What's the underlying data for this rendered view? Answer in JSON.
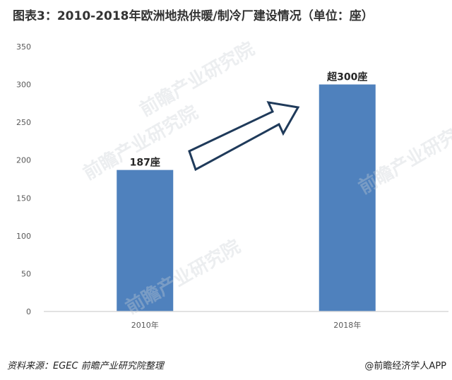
{
  "title": "图表3：2010-2018年欧洲地热供暖/制冷厂建设情况（单位：座）",
  "watermark": "前瞻产业研究院",
  "source": "资料来源：EGEC 前瞻产业研究院整理",
  "app_credit": "@前瞻经济学人APP",
  "colors": {
    "bar": "#4f81bd",
    "axis": "#d9d9d9",
    "tick_text": "#595959",
    "arrow_stroke": "#1f3a5a"
  },
  "chart_data": {
    "type": "bar",
    "categories": [
      "2010年",
      "2018年"
    ],
    "values": [
      187,
      300
    ],
    "data_labels": [
      "187座",
      "超300座"
    ],
    "ylim": [
      0,
      350
    ],
    "yticks": [
      0,
      50,
      100,
      150,
      200,
      250,
      300,
      350
    ],
    "grid": false,
    "annotation": "upward-arrow"
  }
}
